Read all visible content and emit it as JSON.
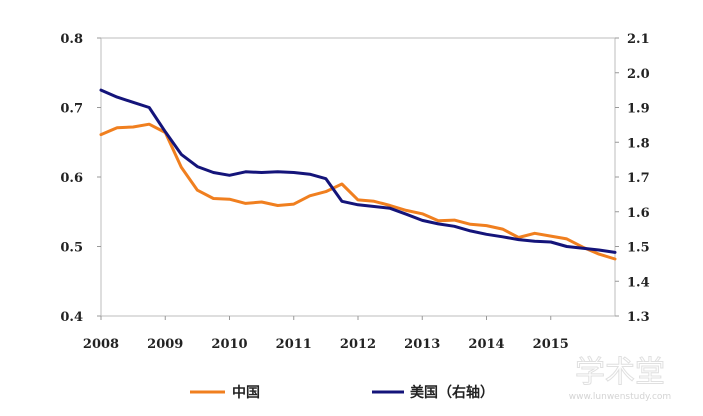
{
  "chart_data": {
    "type": "line",
    "title": "",
    "xlabel": "",
    "ylabel": "",
    "x_ticks": [
      "2008",
      "2009",
      "2010",
      "2011",
      "2012",
      "2013",
      "2014",
      "2015"
    ],
    "xlim": [
      2008.0,
      2016.0
    ],
    "y_left": {
      "lim": [
        0.4,
        0.8
      ],
      "ticks": [
        "0.4",
        "0.5",
        "0.6",
        "0.7",
        "0.8"
      ]
    },
    "y_right": {
      "lim": [
        1.3,
        2.1
      ],
      "ticks": [
        "1.3",
        "1.4",
        "1.5",
        "1.6",
        "1.7",
        "1.8",
        "1.9",
        "2.0",
        "2.1"
      ]
    },
    "grid": false,
    "legend_position": "bottom",
    "series": [
      {
        "name": "中国",
        "axis": "left",
        "color": "#F07F1F",
        "x": [
          2008.0,
          2008.25,
          2008.5,
          2008.75,
          2009.0,
          2009.25,
          2009.5,
          2009.75,
          2010.0,
          2010.25,
          2010.5,
          2010.75,
          2011.0,
          2011.25,
          2011.5,
          2011.75,
          2012.0,
          2012.25,
          2012.5,
          2012.75,
          2013.0,
          2013.25,
          2013.5,
          2013.75,
          2014.0,
          2014.25,
          2014.5,
          2014.75,
          2015.0,
          2015.25,
          2015.5,
          2015.75,
          2016.0
        ],
        "values": [
          0.661,
          0.671,
          0.672,
          0.676,
          0.664,
          0.614,
          0.581,
          0.569,
          0.568,
          0.562,
          0.564,
          0.559,
          0.561,
          0.573,
          0.579,
          0.59,
          0.567,
          0.565,
          0.559,
          0.552,
          0.547,
          0.537,
          0.538,
          0.532,
          0.53,
          0.525,
          0.513,
          0.519,
          0.515,
          0.511,
          0.499,
          0.489,
          0.482
        ]
      },
      {
        "name": "美国（右轴）",
        "axis": "right",
        "color": "#14147A",
        "x": [
          2008.0,
          2008.25,
          2008.5,
          2008.75,
          2009.0,
          2009.25,
          2009.5,
          2009.75,
          2010.0,
          2010.25,
          2010.5,
          2010.75,
          2011.0,
          2011.25,
          2011.5,
          2011.75,
          2012.0,
          2012.25,
          2012.5,
          2012.75,
          2013.0,
          2013.25,
          2013.5,
          2013.75,
          2014.0,
          2014.25,
          2014.5,
          2014.75,
          2015.0,
          2015.25,
          2015.5,
          2015.75,
          2016.0
        ],
        "values": [
          1.95,
          1.93,
          1.915,
          1.9,
          1.83,
          1.765,
          1.73,
          1.713,
          1.705,
          1.715,
          1.713,
          1.715,
          1.713,
          1.708,
          1.695,
          1.63,
          1.62,
          1.615,
          1.61,
          1.593,
          1.575,
          1.565,
          1.558,
          1.545,
          1.535,
          1.528,
          1.52,
          1.515,
          1.513,
          1.5,
          1.495,
          1.49,
          1.483
        ]
      }
    ]
  },
  "watermark": {
    "main": "学术堂",
    "sub": "www.lunwenstudy.com"
  }
}
